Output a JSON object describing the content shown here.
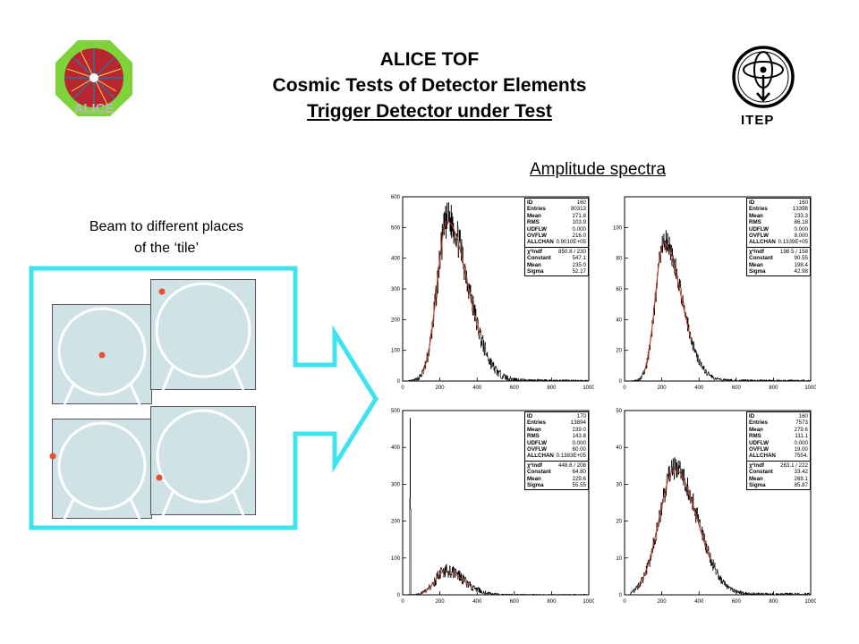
{
  "header": {
    "title_line1": "ALICE TOF",
    "title_line2": "Cosmic Tests of Detector Elements",
    "title_line3": "Trigger Detector under Test",
    "logo_left_text": "ALICE",
    "logo_right_text": "ITEP"
  },
  "amplitude_label": "Amplitude spectra",
  "beam_label_line1": "Beam to different places",
  "beam_label_line2": "of the ‘tile’",
  "colors": {
    "accent_cyan": "#3fe3f0",
    "tile_fill": "#cfe3e6",
    "dot_red": "#e8502f",
    "fit_red": "#c0392b"
  },
  "chart_data": [
    {
      "type": "histogram",
      "xlim": [
        0,
        1000
      ],
      "ylim": [
        0,
        600
      ],
      "xticks": [
        "0",
        "200",
        "400",
        "600",
        "800",
        "1000"
      ],
      "yticks": [
        "0",
        "100",
        "200",
        "300",
        "400",
        "500",
        "600"
      ],
      "peak": 240,
      "peak_value": 520,
      "sigma_left": 55,
      "sigma_right": 110,
      "stats": [
        [
          "ID",
          "160"
        ],
        [
          "Entries",
          "90313"
        ],
        [
          "Mean",
          "271.8"
        ],
        [
          "RMS",
          "103.9"
        ],
        [
          "UDFLW",
          "0.000"
        ],
        [
          "OVFLW",
          "216.0"
        ],
        [
          "ALLCHAN",
          "0.9010E+05"
        ]
      ],
      "fit": [
        [
          "χ²/ndf",
          "850.8  /  230"
        ],
        [
          "Constant",
          "547.1"
        ],
        [
          "Mean",
          "235.0"
        ],
        [
          "Sigma",
          "52.17"
        ]
      ]
    },
    {
      "type": "histogram",
      "xlim": [
        0,
        1000
      ],
      "ylim": [
        0,
        120
      ],
      "xticks": [
        "0",
        "200",
        "400",
        "600",
        "800",
        "1000"
      ],
      "yticks": [
        "0",
        "20",
        "40",
        "60",
        "80",
        "100"
      ],
      "peak": 210,
      "peak_value": 90,
      "sigma_left": 45,
      "sigma_right": 95,
      "stats": [
        [
          "ID",
          "160"
        ],
        [
          "Entries",
          "13398"
        ],
        [
          "Mean",
          "233.3"
        ],
        [
          "RMS",
          "86.18"
        ],
        [
          "UDFLW",
          "0.000"
        ],
        [
          "OVFLW",
          "8.000"
        ],
        [
          "ALLCHAN",
          "0.1339E+05"
        ]
      ],
      "fit": [
        [
          "χ²/ndf",
          "198.5  /  158"
        ],
        [
          "Constant",
          "90.55"
        ],
        [
          "Mean",
          "198.4"
        ],
        [
          "Sigma",
          "42.98"
        ]
      ]
    },
    {
      "type": "histogram",
      "xlim": [
        0,
        1000
      ],
      "ylim": [
        0,
        500
      ],
      "xticks": [
        "0",
        "200",
        "400",
        "600",
        "800",
        "1000"
      ],
      "yticks": [
        "0",
        "100",
        "200",
        "300",
        "400",
        "500"
      ],
      "peak": 230,
      "peak_value": 65,
      "sigma_left": 55,
      "sigma_right": 95,
      "spike_x": 40,
      "spike_value": 460,
      "stats": [
        [
          "ID",
          "170"
        ],
        [
          "Entries",
          "13894"
        ],
        [
          "Mean",
          "239.0"
        ],
        [
          "RMS",
          "143.8"
        ],
        [
          "UDFLW",
          "0.000"
        ],
        [
          "OVFLW",
          "60.00"
        ],
        [
          "ALLCHAN",
          "0.1383E+05"
        ]
      ],
      "fit": [
        [
          "χ²/ndf",
          "448.6  /  208"
        ],
        [
          "Constant",
          "64.80"
        ],
        [
          "Mean",
          "229.6"
        ],
        [
          "Sigma",
          "55.55"
        ]
      ]
    },
    {
      "type": "histogram",
      "xlim": [
        0,
        1000
      ],
      "ylim": [
        0,
        50
      ],
      "xticks": [
        "0",
        "200",
        "400",
        "600",
        "800",
        "1000"
      ],
      "yticks": [
        "0",
        "10",
        "20",
        "30",
        "40",
        "50"
      ],
      "peak": 270,
      "peak_value": 34,
      "sigma_left": 85,
      "sigma_right": 120,
      "stats": [
        [
          "ID",
          "160"
        ],
        [
          "Entries",
          "7573"
        ],
        [
          "Mean",
          "279.6"
        ],
        [
          "RMS",
          "111.1"
        ],
        [
          "UDFLW",
          "0.000"
        ],
        [
          "OVFLW",
          "19.00"
        ],
        [
          "ALLCHAN",
          "7554."
        ]
      ],
      "fit": [
        [
          "χ²/ndf",
          "263.1  /  222"
        ],
        [
          "Constant",
          "33.42"
        ],
        [
          "Mean",
          "269.1"
        ],
        [
          "Sigma",
          "85.87"
        ]
      ]
    }
  ]
}
